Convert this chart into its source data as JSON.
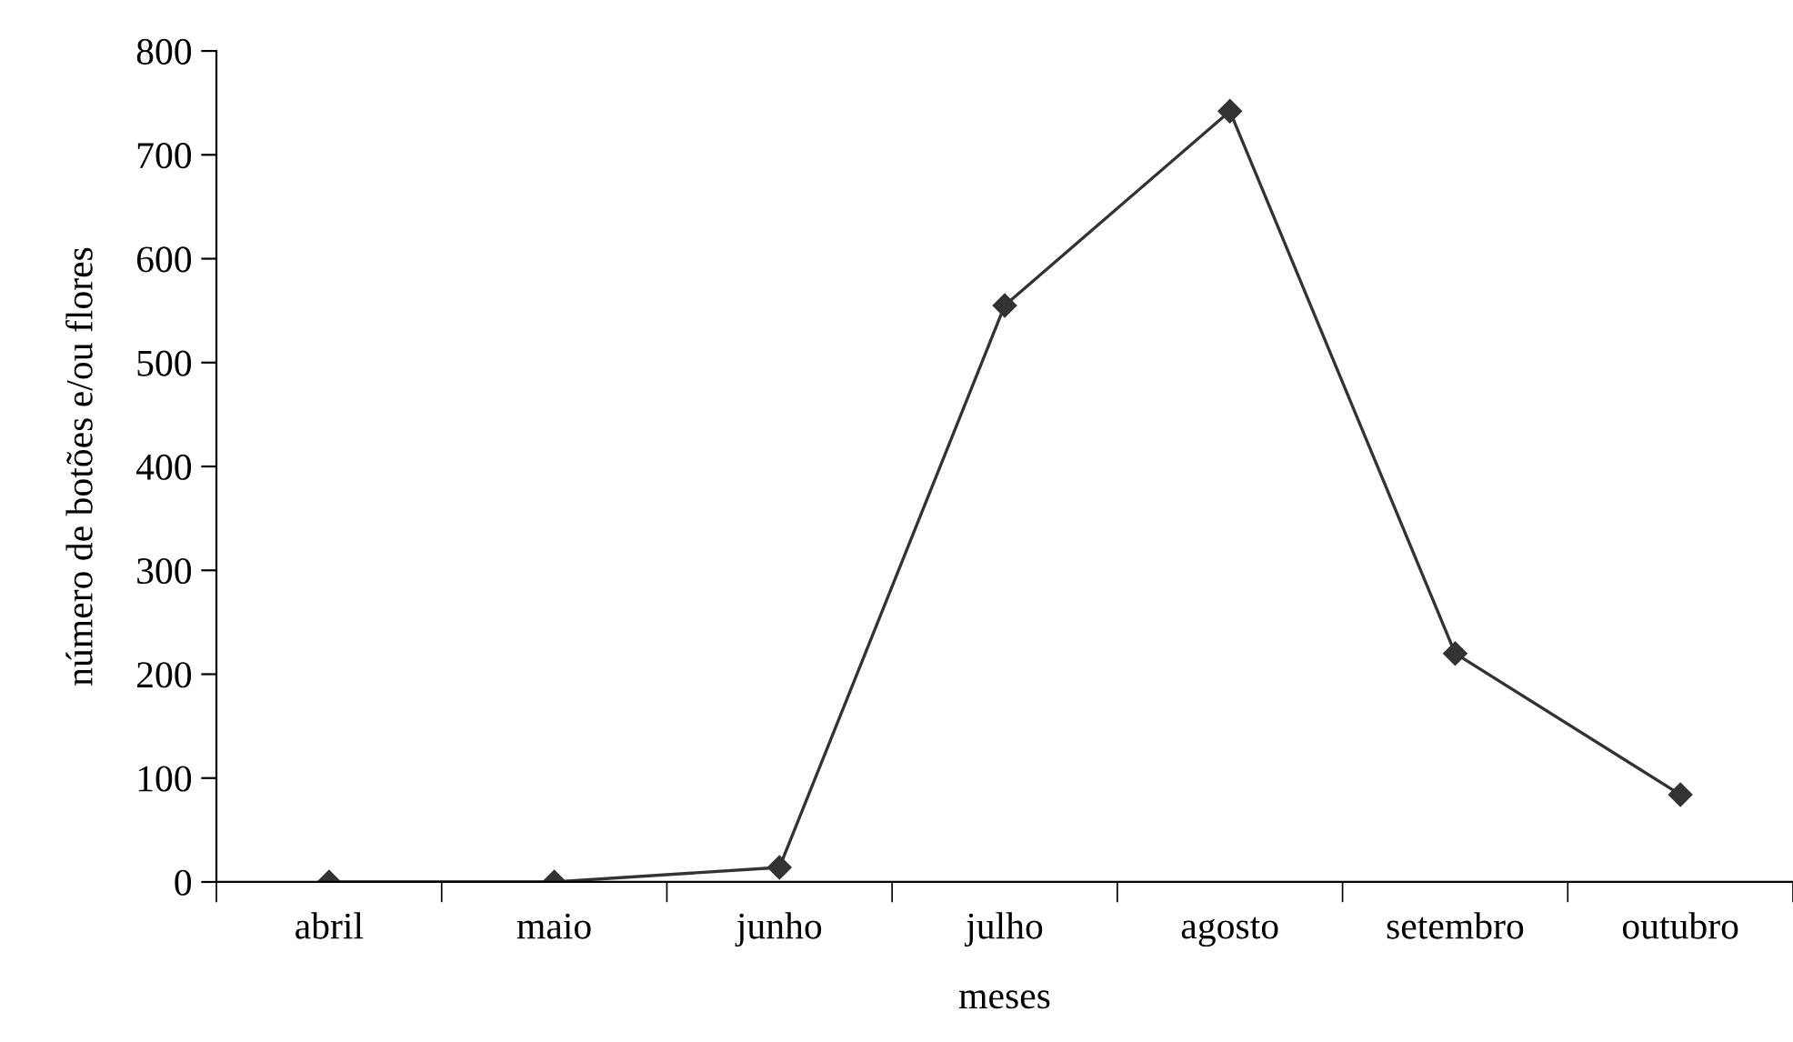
{
  "chart_data": {
    "type": "line",
    "xlabel": "meses",
    "ylabel": "número de botões e/ou flores",
    "categories": [
      "abril",
      "maio",
      "junho",
      "julho",
      "agosto",
      "setembro",
      "outubro"
    ],
    "series": [
      {
        "color": "#333333",
        "values": [
          0,
          0,
          14,
          555,
          742,
          220,
          84
        ]
      }
    ],
    "ylim": [
      0,
      800
    ],
    "yticks": [
      0,
      100,
      200,
      300,
      400,
      500,
      600,
      700,
      800
    ],
    "marker": "diamond",
    "line_style": "solid",
    "grid": false,
    "legend": false
  }
}
